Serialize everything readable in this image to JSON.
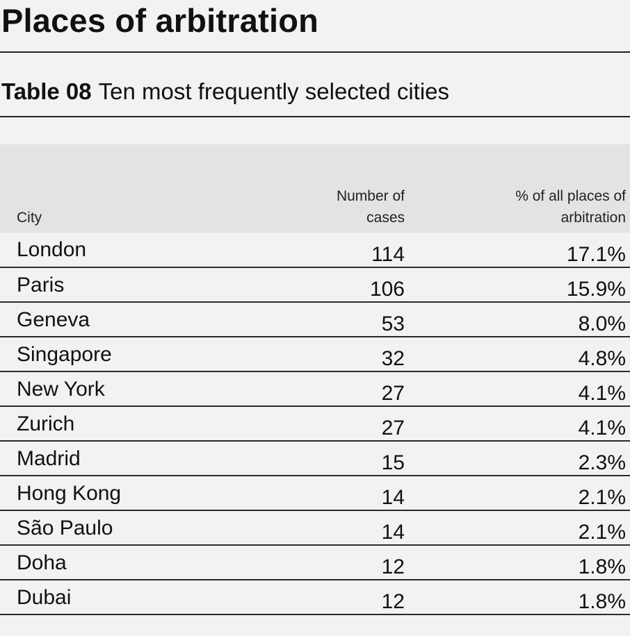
{
  "page": {
    "title": "Places of arbitration"
  },
  "table": {
    "label": "Table 08",
    "caption": "Ten most frequently selected cities",
    "headers": {
      "city": "City",
      "cases_line1": "Number of",
      "cases_line2": "cases",
      "percent_line1": "% of all places of",
      "percent_line2": "arbitration"
    },
    "rows": [
      {
        "city": "London",
        "cases": "114",
        "percent": "17.1%"
      },
      {
        "city": "Paris",
        "cases": "106",
        "percent": "15.9%"
      },
      {
        "city": "Geneva",
        "cases": "53",
        "percent": "8.0%"
      },
      {
        "city": "Singapore",
        "cases": "32",
        "percent": "4.8%"
      },
      {
        "city": "New York",
        "cases": "27",
        "percent": "4.1%"
      },
      {
        "city": "Zurich",
        "cases": "27",
        "percent": "4.1%"
      },
      {
        "city": "Madrid",
        "cases": "15",
        "percent": "2.3%"
      },
      {
        "city": "Hong Kong",
        "cases": "14",
        "percent": "2.1%"
      },
      {
        "city": "São Paulo",
        "cases": "14",
        "percent": "2.1%"
      },
      {
        "city": "Doha",
        "cases": "12",
        "percent": "1.8%"
      },
      {
        "city": "Dubai",
        "cases": "12",
        "percent": "1.8%"
      }
    ]
  },
  "colors": {
    "page_background": "#f2f2f2",
    "header_background": "#e3e3e3",
    "text": "#111111",
    "rules": "#222222"
  }
}
